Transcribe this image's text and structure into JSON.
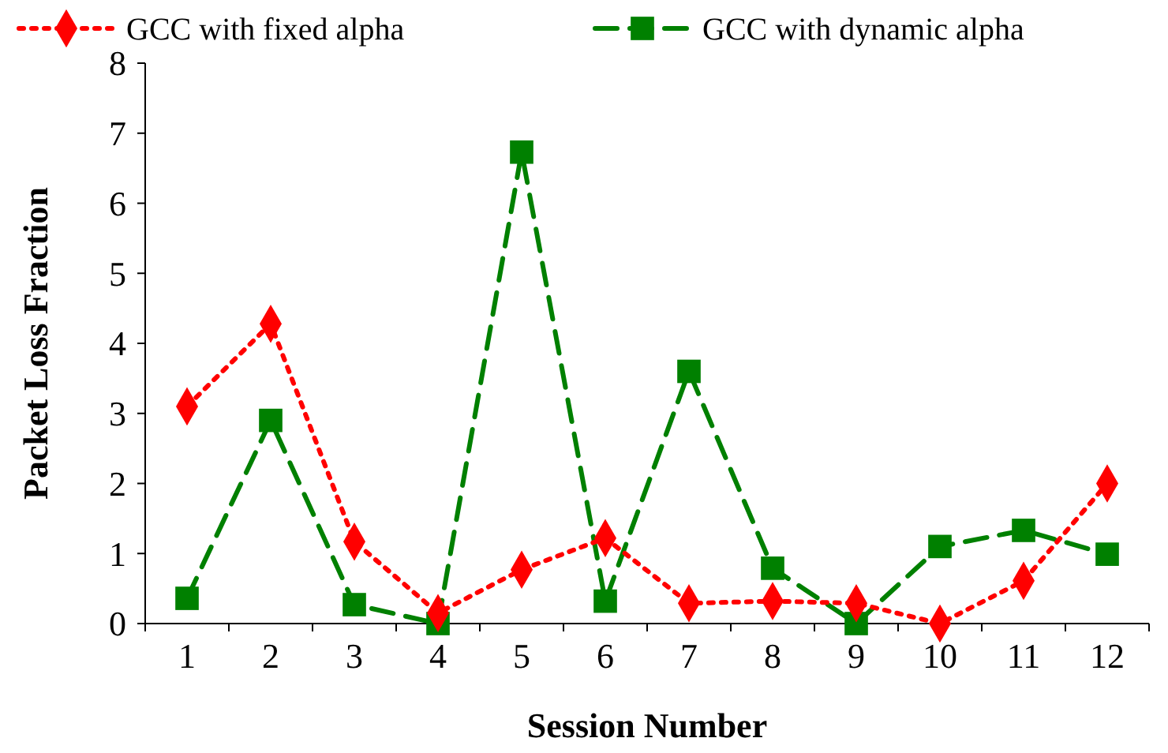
{
  "chart_data": {
    "type": "line",
    "xlabel": "Session Number",
    "ylabel": "Packet Loss Fraction",
    "categories": [
      "1",
      "2",
      "3",
      "4",
      "5",
      "6",
      "7",
      "8",
      "9",
      "10",
      "11",
      "12"
    ],
    "series": [
      {
        "name": "GCC with fixed alpha",
        "color": "#ff0000",
        "marker": "diamond",
        "line_style": "dotted",
        "values": [
          3.1,
          4.28,
          1.17,
          0.15,
          0.77,
          1.22,
          0.29,
          0.32,
          0.29,
          0,
          0.61,
          2.0
        ]
      },
      {
        "name": "GCC with dynamic alpha",
        "color": "#008000",
        "marker": "square",
        "line_style": "dashed",
        "values": [
          0.36,
          2.9,
          0.27,
          0,
          6.73,
          0.32,
          3.6,
          0.79,
          0,
          1.1,
          1.33,
          0.99
        ]
      }
    ],
    "ylim": [
      0,
      8
    ],
    "yticks": [
      0,
      1,
      2,
      3,
      4,
      5,
      6,
      7,
      8
    ],
    "grid": false,
    "legend": "top"
  }
}
